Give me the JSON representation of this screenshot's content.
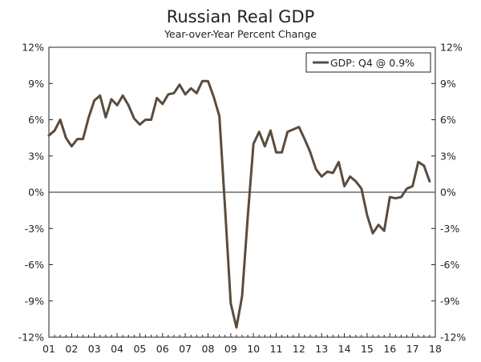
{
  "chart_data": {
    "type": "line",
    "title": "Russian Real GDP",
    "subtitle": "Year-over-Year Percent Change",
    "xlabel": "",
    "ylabel": "",
    "ylim": [
      -12,
      12
    ],
    "xlim": [
      2001,
      2018
    ],
    "grid": false,
    "zero_line": true,
    "legend_position": "top-right",
    "y_ticks": [
      12,
      9,
      6,
      3,
      0,
      -3,
      -6,
      -9,
      -12
    ],
    "y_tick_labels": [
      "12%",
      "9%",
      "6%",
      "3%",
      "0%",
      "-3%",
      "-6%",
      "-9%",
      "-12%"
    ],
    "x_ticks": [
      2001,
      2002,
      2003,
      2004,
      2005,
      2006,
      2007,
      2008,
      2009,
      2010,
      2011,
      2012,
      2013,
      2014,
      2015,
      2016,
      2017,
      2018
    ],
    "x_tick_labels": [
      "01",
      "02",
      "03",
      "04",
      "05",
      "06",
      "07",
      "08",
      "09",
      "10",
      "11",
      "12",
      "13",
      "14",
      "15",
      "16",
      "17",
      "18"
    ],
    "series": [
      {
        "name": "GDP: Q4 @ 0.9%",
        "color": "#5a4c3e",
        "x": [
          2001.0,
          2001.25,
          2001.5,
          2001.75,
          2002.0,
          2002.25,
          2002.5,
          2002.75,
          2003.0,
          2003.25,
          2003.5,
          2003.75,
          2004.0,
          2004.25,
          2004.5,
          2004.75,
          2005.0,
          2005.25,
          2005.5,
          2005.75,
          2006.0,
          2006.25,
          2006.5,
          2006.75,
          2007.0,
          2007.25,
          2007.5,
          2007.75,
          2008.0,
          2008.25,
          2008.5,
          2008.75,
          2009.0,
          2009.25,
          2009.5,
          2009.75,
          2010.0,
          2010.25,
          2010.5,
          2010.75,
          2011.0,
          2011.25,
          2011.5,
          2011.75,
          2012.0,
          2012.25,
          2012.5,
          2012.75,
          2013.0,
          2013.25,
          2013.5,
          2013.75,
          2014.0,
          2014.25,
          2014.5,
          2014.75,
          2015.0,
          2015.25,
          2015.5,
          2015.75,
          2016.0,
          2016.25,
          2016.5,
          2016.75,
          2017.0,
          2017.25,
          2017.5,
          2017.75
        ],
        "values": [
          4.7,
          5.1,
          6.0,
          4.5,
          3.8,
          4.4,
          4.4,
          6.2,
          7.6,
          8.0,
          6.2,
          7.7,
          7.2,
          8.0,
          7.2,
          6.1,
          5.6,
          6.0,
          6.0,
          7.8,
          7.3,
          8.1,
          8.2,
          8.9,
          8.1,
          8.6,
          8.2,
          9.2,
          9.2,
          7.9,
          6.3,
          -1.3,
          -9.2,
          -11.2,
          -8.6,
          -2.0,
          4.0,
          5.0,
          3.8,
          5.1,
          3.3,
          3.3,
          5.0,
          5.2,
          5.4,
          4.4,
          3.3,
          1.9,
          1.3,
          1.7,
          1.6,
          2.5,
          0.5,
          1.3,
          0.9,
          0.3,
          -1.9,
          -3.4,
          -2.7,
          -3.2,
          -0.4,
          -0.5,
          -0.4,
          0.3,
          0.5,
          2.5,
          2.2,
          0.9
        ]
      }
    ]
  }
}
